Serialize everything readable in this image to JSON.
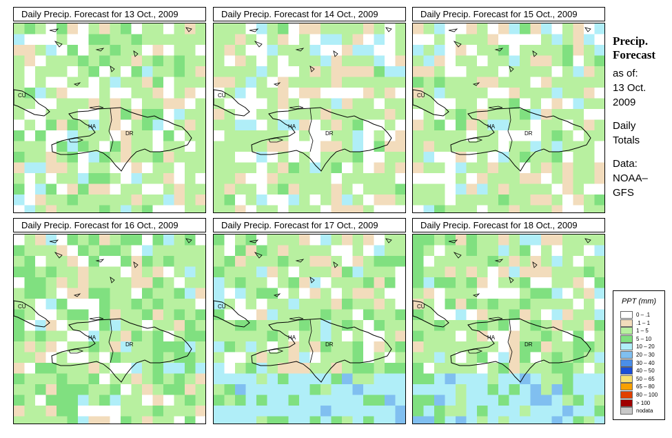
{
  "panels": [
    {
      "title": "Daily Precip. Forecast for  13 Oct., 2009",
      "seed": 13,
      "base": 0.55
    },
    {
      "title": "Daily Precip. Forecast for  14 Oct., 2009",
      "seed": 14,
      "base": 0.65
    },
    {
      "title": "Daily Precip. Forecast for  15 Oct., 2009",
      "seed": 15,
      "base": 0.6
    },
    {
      "title": "Daily Precip. Forecast for  16 Oct., 2009",
      "seed": 16,
      "base": 0.45
    },
    {
      "title": "Daily Precip. Forecast for  17 Oct., 2009",
      "seed": 17,
      "base": 0.5
    },
    {
      "title": "Daily Precip. Forecast for  18 Oct., 2009",
      "seed": 18,
      "base": 0.5
    }
  ],
  "map_labels": {
    "cuba": "CU",
    "haiti": "HA",
    "dominican_republic": "DR"
  },
  "side": {
    "title_line1": "Precip.",
    "title_line2": "Forecast",
    "as_of": "as of:",
    "date_line1": "13 Oct.",
    "date_line2": "2009",
    "daily_line1": "Daily",
    "daily_line2": "Totals",
    "data_line1": "Data:",
    "data_line2": "NOAA–",
    "data_line3": "GFS"
  },
  "legend": {
    "title": "PPT (mm)",
    "items": [
      {
        "label": "0 – .1",
        "color": "#ffffff"
      },
      {
        "label": ".1 – 1",
        "color": "#f2dcbc"
      },
      {
        "label": "1 – 5",
        "color": "#b8f0a0"
      },
      {
        "label": "5 – 10",
        "color": "#80e080"
      },
      {
        "label": "10 – 20",
        "color": "#b0eef8"
      },
      {
        "label": "20 – 30",
        "color": "#80bff0"
      },
      {
        "label": "30 – 40",
        "color": "#4a8ee8"
      },
      {
        "label": "40 – 50",
        "color": "#1a4ed8"
      },
      {
        "label": "50 – 65",
        "color": "#f8e070"
      },
      {
        "label": "65 – 80",
        "color": "#f8a000"
      },
      {
        "label": "80 – 100",
        "color": "#e04000"
      },
      {
        "label": "> 100",
        "color": "#a00000"
      },
      {
        "label": "nodata",
        "color": "#c8c8c8"
      }
    ]
  }
}
